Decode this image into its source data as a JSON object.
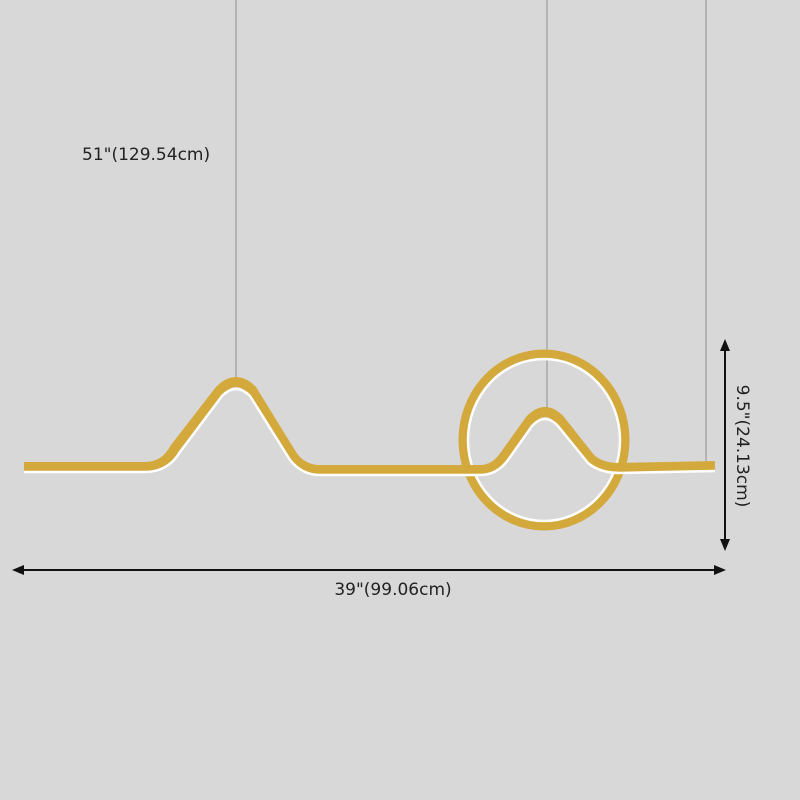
{
  "dimensions": {
    "hanging_height": "51\"(129.54cm)",
    "width": "39\"(99.06cm)",
    "height": "9.5\"(24.13cm)"
  },
  "colors": {
    "background": "#d8d8d8",
    "fixture_gold": "#d4a93c",
    "led_glow": "#ffffff",
    "wire": "#a8a8a8",
    "dimension_lines": "#111111"
  }
}
